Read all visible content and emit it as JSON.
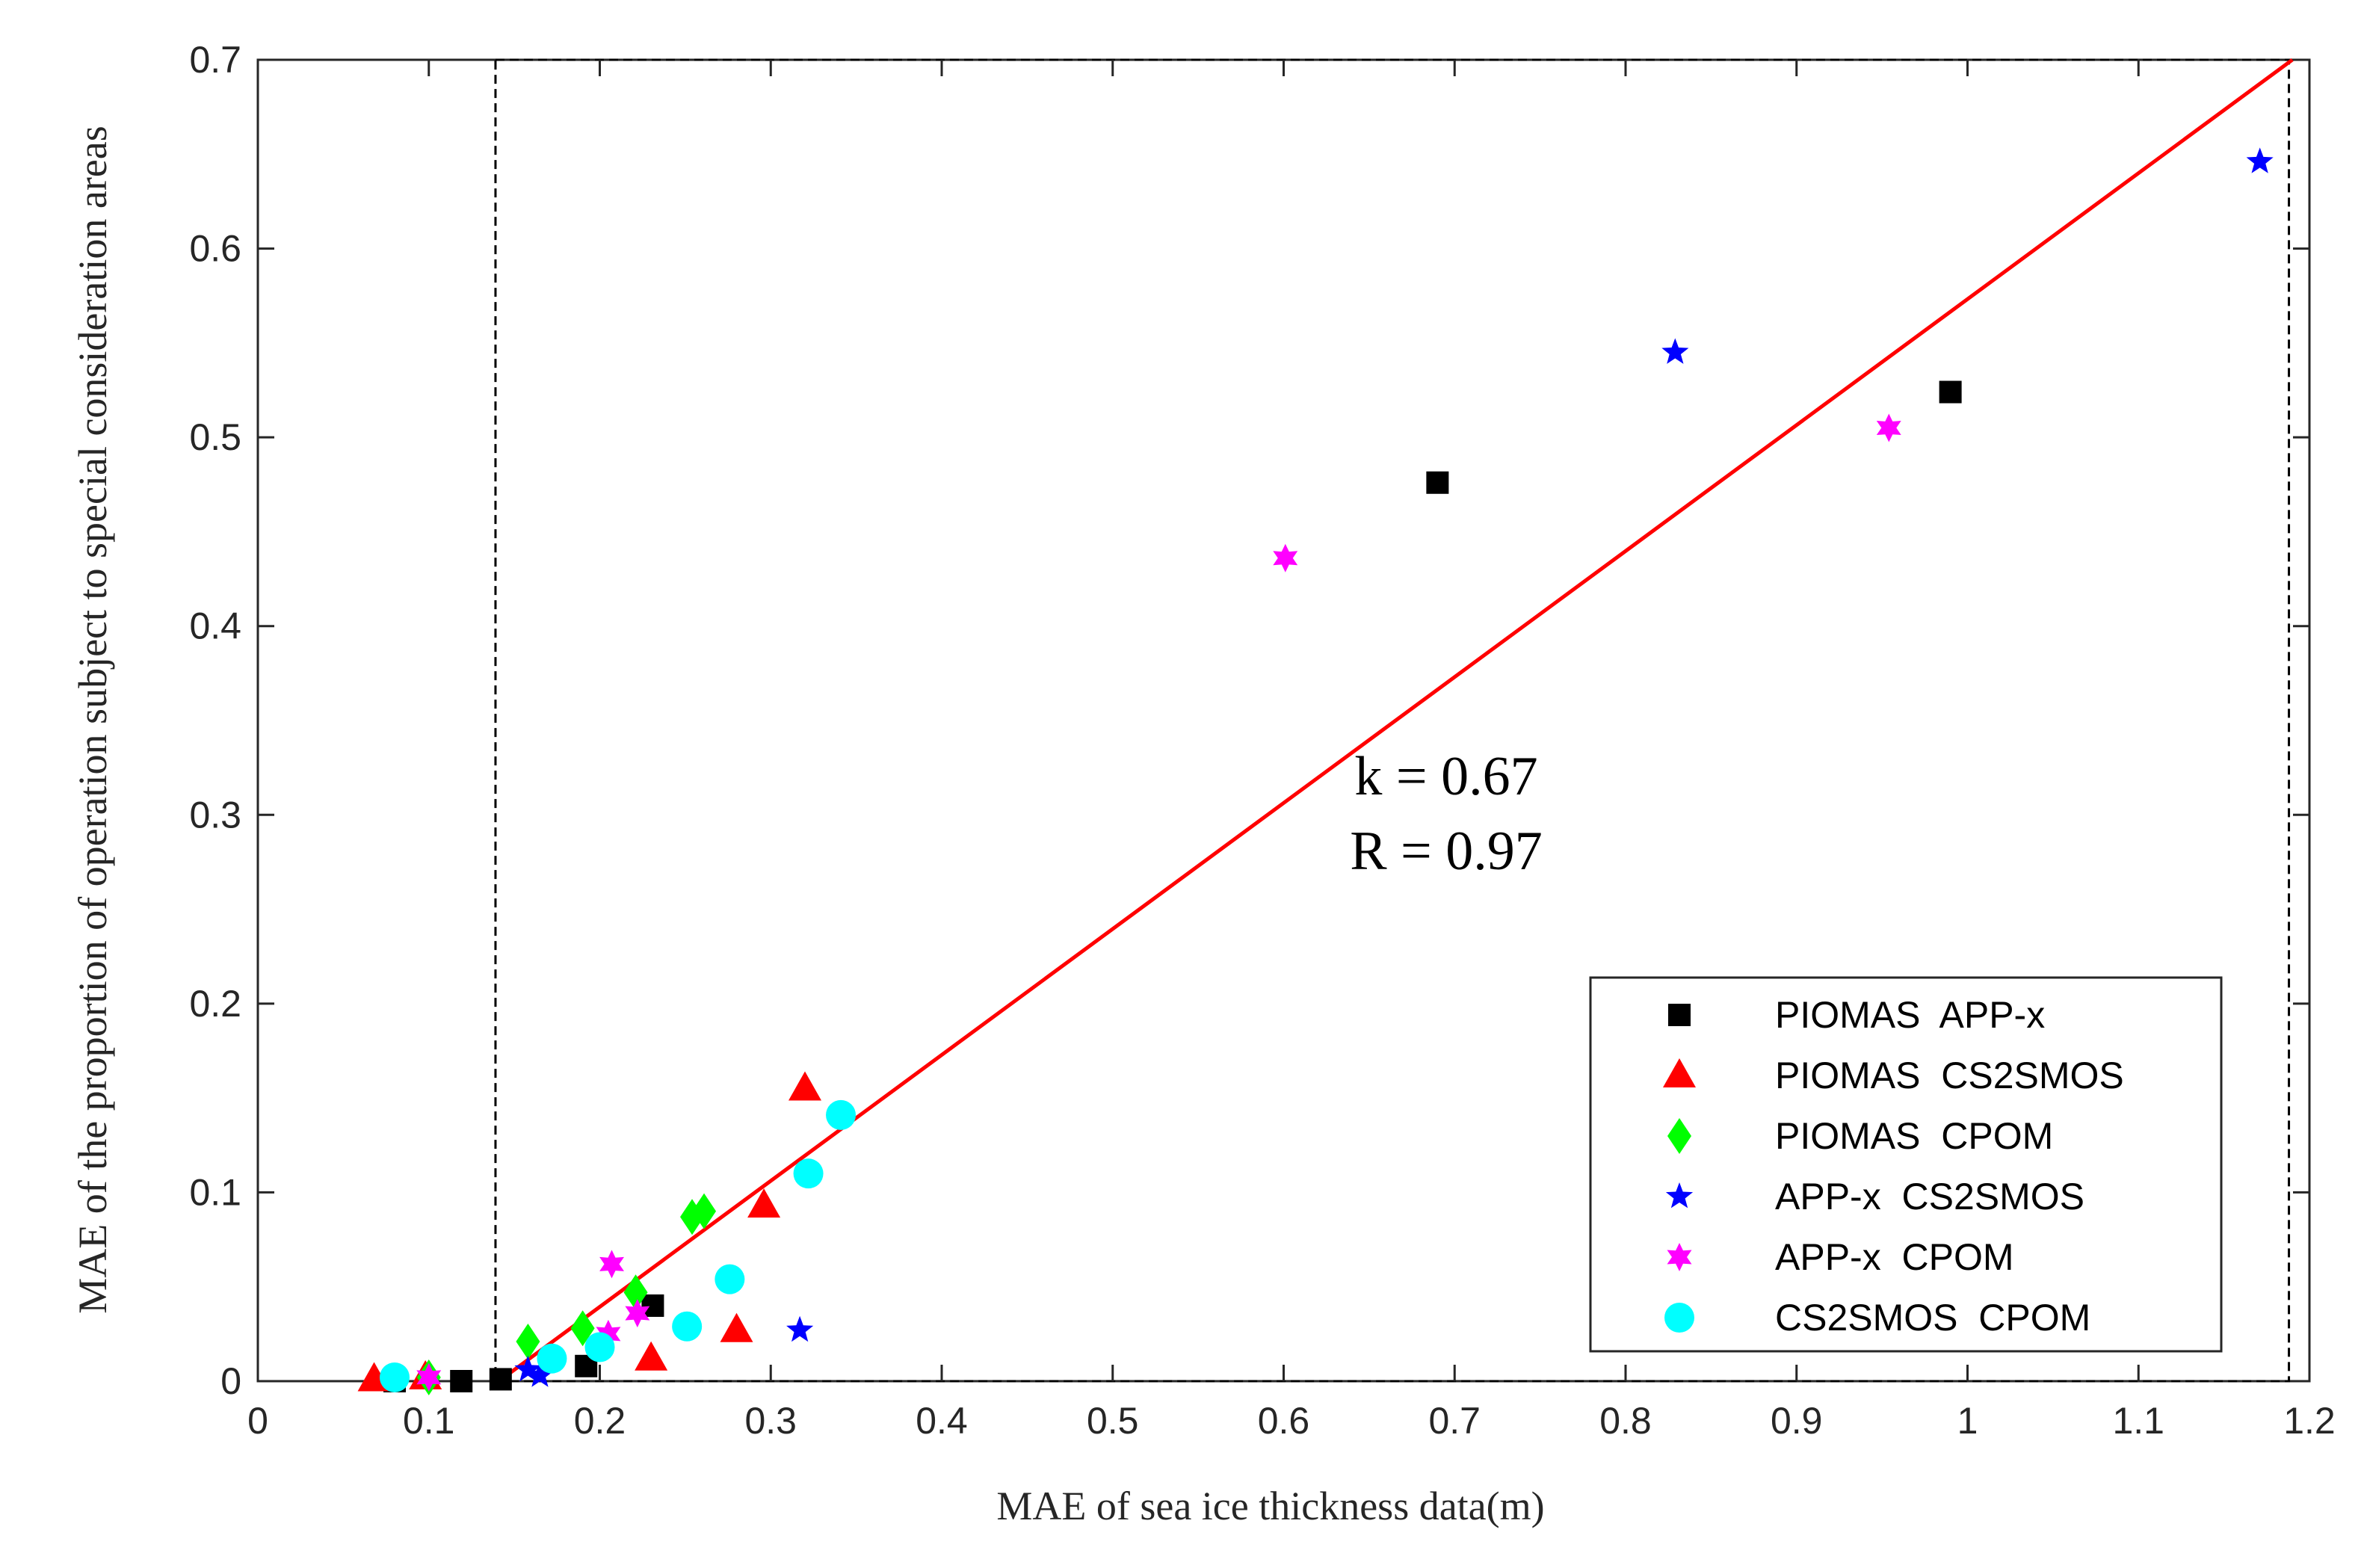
{
  "chart_data": {
    "type": "scatter",
    "title": "",
    "xlabel": "MAE of sea ice thickness data(m)",
    "ylabel": "MAE of the proportion of operation subject to special consideration areas",
    "xlim": [
      0,
      1.2
    ],
    "ylim": [
      0,
      0.7
    ],
    "xticks": [
      0,
      0.1,
      0.2,
      0.3,
      0.4,
      0.5,
      0.6,
      0.7,
      0.8,
      0.9,
      1,
      1.1,
      1.2
    ],
    "xtick_labels": [
      "0",
      "0.1",
      "0.2",
      "0.3",
      "0.4",
      "0.5",
      "0.6",
      "0.7",
      "0.8",
      "0.9",
      "1",
      "1.1",
      "1.2"
    ],
    "yticks": [
      0,
      0.1,
      0.2,
      0.3,
      0.4,
      0.5,
      0.6,
      0.7
    ],
    "ytick_labels": [
      "0",
      "0.1",
      "0.2",
      "0.3",
      "0.4",
      "0.5",
      "0.6",
      "0.7"
    ],
    "grid": false,
    "legend_position": "bottom-right",
    "series": [
      {
        "name": "PIOMAS  APP-x",
        "marker": "square",
        "color": "#000000",
        "x": [
          0.08,
          0.119,
          0.142,
          0.192,
          0.231,
          0.69,
          0.99
        ],
        "y": [
          0.0,
          0.0,
          0.001,
          0.008,
          0.04,
          0.476,
          0.524
        ]
      },
      {
        "name": "PIOMAS  CS2SMOS",
        "marker": "triangle",
        "color": "#ff0000",
        "x": [
          0.068,
          0.098,
          0.23,
          0.28,
          0.296,
          0.32
        ],
        "y": [
          0.001,
          0.002,
          0.012,
          0.027,
          0.093,
          0.155
        ]
      },
      {
        "name": "PIOMAS  CPOM",
        "marker": "diamond",
        "color": "#00ff00",
        "x": [
          0.1,
          0.158,
          0.19,
          0.221,
          0.254,
          0.261
        ],
        "y": [
          0.002,
          0.021,
          0.028,
          0.047,
          0.087,
          0.09
        ]
      },
      {
        "name": "APP-x  CS2SMOS",
        "marker": "star5",
        "color": "#0000ff",
        "x": [
          0.158,
          0.165,
          0.317,
          0.829,
          1.171
        ],
        "y": [
          0.006,
          0.003,
          0.027,
          0.545,
          0.646
        ]
      },
      {
        "name": "APP-x  CPOM",
        "marker": "star6",
        "color": "#ff00ff",
        "x": [
          0.1,
          0.205,
          0.207,
          0.222,
          0.601,
          0.954
        ],
        "y": [
          0.002,
          0.025,
          0.062,
          0.036,
          0.436,
          0.505
        ]
      },
      {
        "name": "CS2SMOS  CPOM",
        "marker": "circle",
        "color": "#00ffff",
        "x": [
          0.08,
          0.172,
          0.2,
          0.251,
          0.276,
          0.322,
          0.341
        ],
        "y": [
          0.002,
          0.012,
          0.018,
          0.029,
          0.054,
          0.11,
          0.141
        ]
      }
    ],
    "fit_line": {
      "x": [
        0.141,
        1.19
      ],
      "y": [
        0.0,
        0.7
      ],
      "color": "#ff0000"
    },
    "annotations": [
      "k = 0.67",
      "R = 0.97"
    ],
    "reference_box": {
      "x": [
        0.139,
        1.188
      ],
      "y": [
        0.0,
        0.7
      ]
    }
  }
}
